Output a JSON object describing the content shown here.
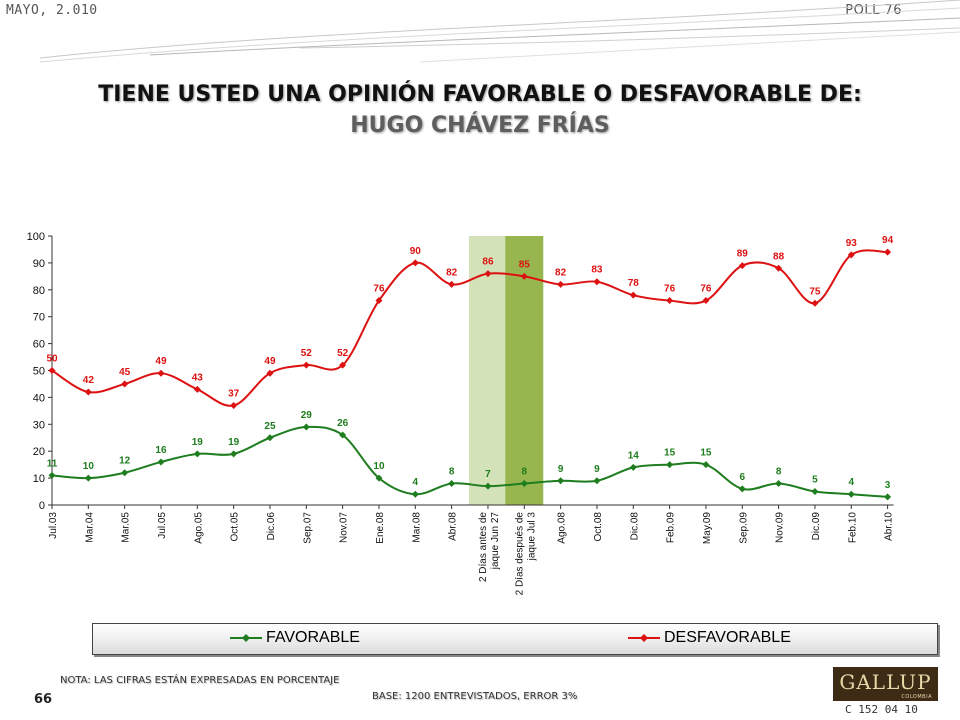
{
  "header": {
    "date": "MAYO, 2.010",
    "poll": "POLL 76",
    "title_line1": "TIENE USTED UNA OPINIÓN FAVORABLE O DESFAVORABLE DE:",
    "title_line2": "HUGO CHÁVEZ FRÍAS"
  },
  "footer": {
    "note": "NOTA: LAS CIFRAS ESTÁN EXPRESADAS EN PORCENTAJE",
    "page_number": "66",
    "base": "BASE: 1200 ENTREVISTADOS, ERROR 3%",
    "logo": "GALLUP",
    "logo_sub": "COLOMBIA",
    "code": "C 152 04 10"
  },
  "chart_data": {
    "type": "line",
    "categories": [
      "Jul.03",
      "Mar.04",
      "Mar.05",
      "Jul.05",
      "Ago.05",
      "Oct.05",
      "Dic.06",
      "Sep.07",
      "Nov.07",
      "Ene.08",
      "Mar.08",
      "Abr.08",
      "2 Días antes de jaque Jun 27",
      "2 Días después de jaque Jul 3",
      "Ago.08",
      "Oct.08",
      "Dic.08",
      "Feb.09",
      "May.09",
      "Sep.09",
      "Nov.09",
      "Dic.09",
      "Feb.10",
      "Abr.10"
    ],
    "series": [
      {
        "name": "FAVORABLE",
        "color": "#1e7d1e",
        "values": [
          11,
          10,
          12,
          16,
          19,
          19,
          25,
          29,
          26,
          10,
          4,
          8,
          7,
          8,
          9,
          9,
          14,
          15,
          15,
          6,
          8,
          5,
          4,
          3
        ]
      },
      {
        "name": "DESFAVORABLE",
        "color": "#dd1111",
        "values": [
          50,
          42,
          45,
          49,
          43,
          37,
          49,
          52,
          52,
          76,
          90,
          82,
          86,
          85,
          82,
          83,
          78,
          76,
          76,
          89,
          88,
          75,
          93,
          94
        ]
      }
    ],
    "ylim": [
      0,
      100
    ],
    "yticks": [
      0,
      10,
      20,
      30,
      40,
      50,
      60,
      70,
      80,
      90,
      100
    ],
    "highlight_colors": [
      "#d3e2b8",
      "#97b64f"
    ],
    "legend_placement": "bottom"
  }
}
